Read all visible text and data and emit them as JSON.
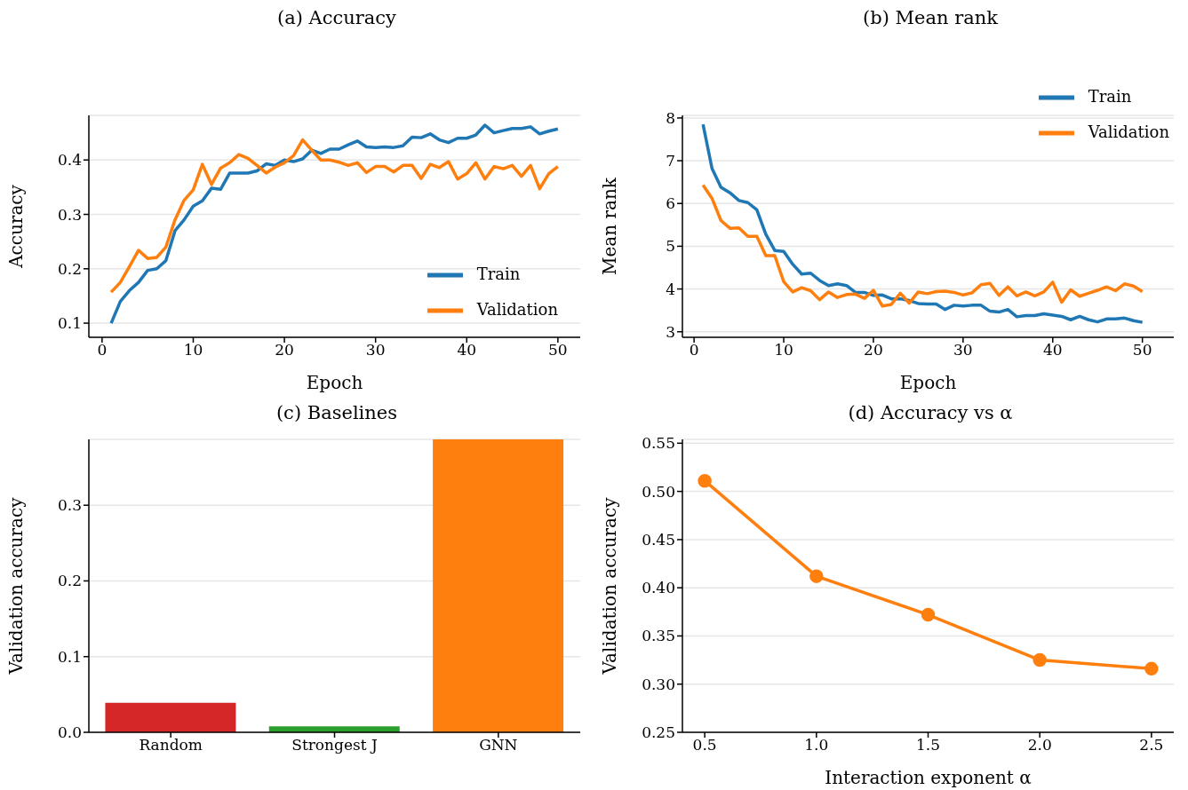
{
  "chart_data": [
    {
      "type": "line",
      "title": "(a) Accuracy",
      "xlabel": "Epoch",
      "ylabel": "Accuracy",
      "x": [
        1,
        2,
        3,
        4,
        5,
        6,
        7,
        8,
        9,
        10,
        11,
        12,
        13,
        14,
        15,
        16,
        17,
        18,
        19,
        20,
        21,
        22,
        23,
        24,
        25,
        26,
        27,
        28,
        29,
        30,
        31,
        32,
        33,
        34,
        35,
        36,
        37,
        38,
        39,
        40,
        41,
        42,
        43,
        44,
        45,
        46,
        47,
        48,
        49,
        50
      ],
      "series": [
        {
          "name": "Train",
          "color": "#1f77b4",
          "values": [
            0.1,
            0.14,
            0.16,
            0.175,
            0.197,
            0.2,
            0.215,
            0.27,
            0.29,
            0.315,
            0.325,
            0.348,
            0.346,
            0.376,
            0.376,
            0.376,
            0.38,
            0.393,
            0.39,
            0.4,
            0.397,
            0.402,
            0.418,
            0.412,
            0.42,
            0.42,
            0.428,
            0.435,
            0.424,
            0.423,
            0.424,
            0.423,
            0.426,
            0.442,
            0.441,
            0.448,
            0.437,
            0.432,
            0.44,
            0.44,
            0.446,
            0.464,
            0.45,
            0.454,
            0.458,
            0.458,
            0.461,
            0.448,
            0.453,
            0.457
          ]
        },
        {
          "name": "Validation",
          "color": "#ff7f0e",
          "values": [
            0.157,
            0.175,
            0.204,
            0.234,
            0.219,
            0.221,
            0.24,
            0.29,
            0.326,
            0.345,
            0.392,
            0.355,
            0.385,
            0.395,
            0.41,
            0.403,
            0.39,
            0.376,
            0.387,
            0.395,
            0.408,
            0.437,
            0.418,
            0.4,
            0.4,
            0.396,
            0.39,
            0.395,
            0.377,
            0.388,
            0.388,
            0.378,
            0.39,
            0.39,
            0.366,
            0.392,
            0.386,
            0.397,
            0.365,
            0.375,
            0.395,
            0.365,
            0.388,
            0.384,
            0.39,
            0.37,
            0.39,
            0.347,
            0.375,
            0.388
          ]
        }
      ],
      "xlim": [
        -1.45,
        52.45
      ],
      "xticks": [
        0,
        10,
        20,
        30,
        40,
        50
      ],
      "ylim": [
        0.074,
        0.482
      ],
      "yticks": [
        0.1,
        0.2,
        0.3,
        0.4
      ],
      "grid": "y",
      "legend": "bottom right"
    },
    {
      "type": "line",
      "title": "(b) Mean rank",
      "xlabel": "Epoch",
      "ylabel": "Mean rank",
      "x": [
        1,
        2,
        3,
        4,
        5,
        6,
        7,
        8,
        9,
        10,
        11,
        12,
        13,
        14,
        15,
        16,
        17,
        18,
        19,
        20,
        21,
        22,
        23,
        24,
        25,
        26,
        27,
        28,
        29,
        30,
        31,
        32,
        33,
        34,
        35,
        36,
        37,
        38,
        39,
        40,
        41,
        42,
        43,
        44,
        45,
        46,
        47,
        48,
        49,
        50
      ],
      "series": [
        {
          "name": "Train",
          "color": "#1f77b4",
          "values": [
            7.85,
            6.82,
            6.38,
            6.25,
            6.07,
            6.02,
            5.85,
            5.28,
            4.9,
            4.88,
            4.58,
            4.35,
            4.37,
            4.2,
            4.08,
            4.12,
            4.08,
            3.92,
            3.92,
            3.85,
            3.86,
            3.77,
            3.77,
            3.73,
            3.66,
            3.65,
            3.65,
            3.52,
            3.62,
            3.6,
            3.62,
            3.62,
            3.48,
            3.46,
            3.52,
            3.35,
            3.38,
            3.38,
            3.42,
            3.39,
            3.36,
            3.28,
            3.36,
            3.28,
            3.23,
            3.3,
            3.3,
            3.32,
            3.26,
            3.22
          ]
        },
        {
          "name": "Validation",
          "color": "#ff7f0e",
          "values": [
            6.43,
            6.12,
            5.6,
            5.42,
            5.43,
            5.23,
            5.23,
            4.78,
            4.78,
            4.17,
            3.93,
            4.03,
            3.96,
            3.75,
            3.93,
            3.8,
            3.87,
            3.88,
            3.78,
            3.97,
            3.6,
            3.64,
            3.9,
            3.67,
            3.93,
            3.89,
            3.94,
            3.95,
            3.92,
            3.86,
            3.91,
            4.1,
            4.13,
            3.85,
            4.05,
            3.84,
            3.93,
            3.84,
            3.93,
            4.16,
            3.69,
            3.98,
            3.83,
            3.9,
            3.97,
            4.05,
            3.96,
            4.12,
            4.07,
            3.94
          ]
        }
      ],
      "xlim": [
        -1.3,
        53.5
      ],
      "xticks": [
        0,
        10,
        20,
        30,
        40,
        50
      ],
      "ylim": [
        2.87,
        8.06
      ],
      "yticks": [
        3,
        4,
        5,
        6,
        7,
        8
      ],
      "grid": "y",
      "legend": "top right"
    },
    {
      "type": "bar",
      "title": "(c) Baselines",
      "ylabel": "Validation accuracy",
      "categories": [
        "Random",
        "Strongest J",
        "GNN"
      ],
      "values": [
        0.039,
        0.008,
        0.387
      ],
      "colors": [
        "#d62728",
        "#2ca02c",
        "#ff7f0e"
      ],
      "ylim": [
        0,
        0.387
      ],
      "yticks": [
        {
          "value": 0,
          "label": "0.0"
        },
        0.1,
        0.2,
        0.3
      ],
      "grid": "y"
    },
    {
      "type": "line",
      "title": "(d) Accuracy vs α",
      "xlabel": "Interaction exponent α",
      "ylabel": "Validation accuracy",
      "x": [
        0.5,
        1.0,
        1.5,
        2.0,
        2.5
      ],
      "series": [
        {
          "color": "#ff7f0e",
          "values": [
            0.511,
            0.412,
            0.372,
            0.325,
            0.316
          ]
        }
      ],
      "xlim": [
        0.4,
        2.6
      ],
      "xticks": [
        0.5,
        {
          "value": 1,
          "label": "1.0"
        },
        1.5,
        {
          "value": 2,
          "label": "2.0"
        },
        2.5
      ],
      "ylim": [
        0.25,
        0.554
      ],
      "yticks": [
        0.25,
        {
          "value": 0.3,
          "label": "0.30"
        },
        0.35,
        {
          "value": 0.4,
          "label": "0.40"
        },
        0.45,
        {
          "value": 0.5,
          "label": "0.50"
        },
        0.55
      ],
      "grid": "y",
      "marker": "circle"
    }
  ]
}
